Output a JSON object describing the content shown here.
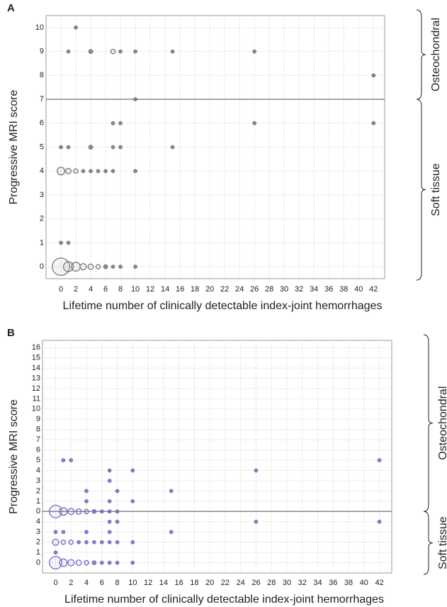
{
  "chart_data": [
    {
      "type": "bubble",
      "panel_label": "A",
      "x_label": "Lifetime number of clinically detectable index-joint hemorrhages",
      "y_label": "Progressive MRI score",
      "side_labels": [
        "Osteochondral",
        "Soft tissue"
      ],
      "hline": 7,
      "grid": true,
      "xlim": [
        -2,
        43.5
      ],
      "xticks": [
        0,
        2,
        4,
        6,
        8,
        10,
        12,
        14,
        16,
        18,
        20,
        22,
        24,
        26,
        28,
        30,
        32,
        34,
        36,
        38,
        40,
        42
      ],
      "ylim": [
        -0.5,
        10.5
      ],
      "yticks": [
        0,
        1,
        2,
        3,
        4,
        5,
        6,
        7,
        8,
        9,
        10
      ],
      "series": [
        {
          "color": "#777777",
          "x": [
            0,
            1,
            2,
            3,
            4,
            5,
            6,
            7,
            8,
            10,
            0,
            1,
            0,
            1,
            2,
            3,
            4,
            5,
            6,
            7,
            10,
            0,
            1,
            4,
            7,
            8,
            15,
            7,
            8,
            26,
            42,
            10,
            42,
            1,
            4,
            7,
            8,
            10,
            15,
            26,
            2
          ],
          "values": [
            0,
            0,
            0,
            0,
            0,
            0,
            0,
            0,
            0,
            0,
            1,
            1,
            4,
            4,
            4,
            4,
            4,
            4,
            4,
            4,
            4,
            5,
            5,
            5,
            5,
            5,
            5,
            6,
            6,
            6,
            6,
            7,
            8,
            9,
            9,
            9,
            9,
            9,
            9,
            9,
            10
          ],
          "sizes": [
            31,
            10,
            8,
            4,
            3,
            2,
            1.5,
            1,
            1,
            1,
            1,
            1,
            6,
            3,
            2,
            1,
            1,
            1,
            1,
            1,
            1,
            1,
            1,
            1.5,
            1,
            1,
            1,
            1,
            1,
            1,
            1,
            1,
            1,
            1,
            1.5,
            2,
            1,
            1,
            1,
            1,
            1
          ]
        }
      ]
    },
    {
      "type": "bubble",
      "panel_label": "B",
      "x_label": "Lifetime number of clinically detectable index-joint hemorrhages",
      "y_label": "Progressive MRI score",
      "side_labels": [
        "Osteochondral",
        "Soft tissue"
      ],
      "hline": 5,
      "grid": true,
      "xlim": [
        -1.7,
        43.6
      ],
      "xticks": [
        0,
        2,
        4,
        6,
        8,
        10,
        12,
        14,
        16,
        18,
        20,
        22,
        24,
        26,
        28,
        30,
        32,
        34,
        36,
        38,
        40,
        42
      ],
      "ylim": [
        -1,
        21.7
      ],
      "yticks": [
        0,
        1,
        2,
        3,
        4,
        {
          "value": 5,
          "label": "0"
        },
        {
          "value": 6,
          "label": "1"
        },
        {
          "value": 7,
          "label": "2"
        },
        {
          "value": 8,
          "label": "3"
        },
        {
          "value": 9,
          "label": "4"
        },
        {
          "value": 10,
          "label": "5"
        },
        {
          "value": 11,
          "label": "6"
        },
        {
          "value": 12,
          "label": "7"
        },
        {
          "value": 13,
          "label": "8"
        },
        {
          "value": 14,
          "label": "9"
        },
        {
          "value": 15,
          "label": "10"
        },
        {
          "value": 16,
          "label": "11"
        },
        {
          "value": 17,
          "label": "12"
        },
        {
          "value": 18,
          "label": "13"
        },
        {
          "value": 19,
          "label": "14"
        },
        {
          "value": 20,
          "label": "15"
        },
        {
          "value": 21,
          "label": "16"
        }
      ],
      "series": [
        {
          "color": "#6f6fc0",
          "x": [
            0,
            1,
            2,
            3,
            4,
            5,
            6,
            7,
            8,
            10,
            0,
            0,
            1,
            2,
            3,
            4,
            5,
            6,
            7,
            8,
            10,
            0,
            1,
            4,
            7,
            15,
            7,
            8,
            26,
            42,
            0,
            1,
            2,
            3,
            4,
            5,
            6,
            7,
            8,
            4,
            7,
            10,
            4,
            8,
            15,
            7,
            7,
            10,
            26,
            1,
            2,
            42
          ],
          "values": [
            0,
            0,
            0,
            0,
            0,
            0,
            0,
            0,
            0,
            0,
            1,
            2,
            2,
            2,
            2,
            2,
            2,
            2,
            2,
            2,
            2,
            3,
            3,
            3,
            3,
            3,
            4,
            4,
            4,
            4,
            5,
            5,
            5,
            5,
            5,
            5,
            5,
            5,
            5,
            6,
            6,
            6,
            7,
            7,
            7,
            8,
            9,
            9,
            9,
            10,
            10,
            10
          ],
          "sizes": [
            16,
            6,
            4,
            3,
            2,
            1.5,
            1,
            1,
            1,
            1,
            1,
            4,
            2,
            2,
            1,
            1,
            1,
            1,
            1,
            1,
            1,
            1,
            1,
            1,
            1,
            1,
            1,
            1,
            1,
            1,
            16,
            6,
            4,
            3,
            2,
            1.5,
            1,
            1,
            1,
            1,
            1,
            1,
            1,
            1,
            1,
            1,
            1,
            1,
            1,
            1,
            1,
            1
          ]
        }
      ]
    }
  ]
}
